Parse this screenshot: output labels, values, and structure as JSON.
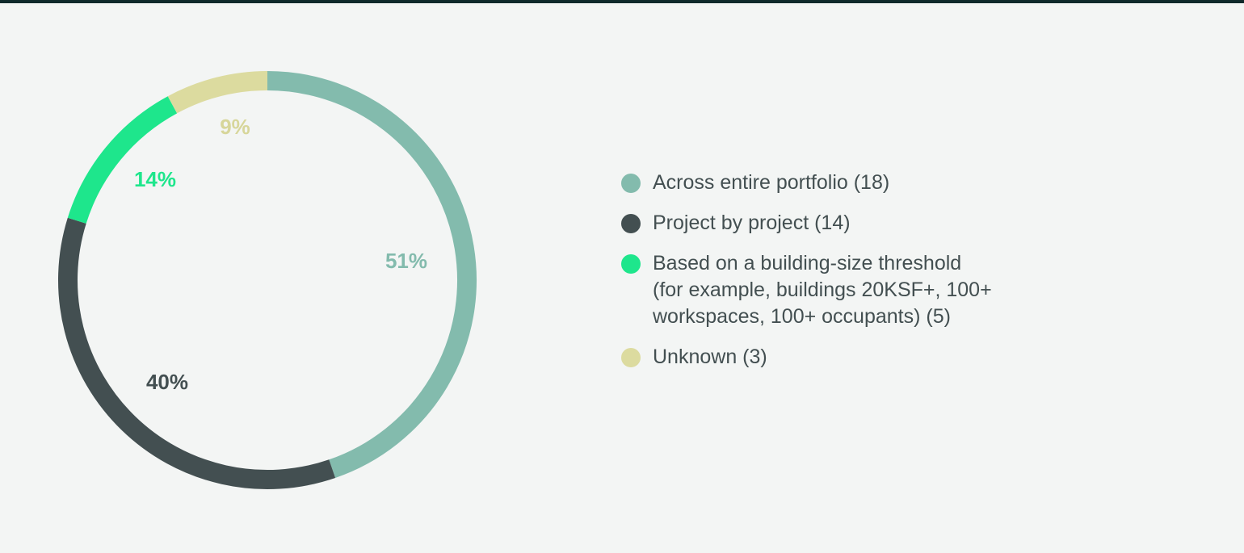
{
  "chart_data": {
    "type": "pie",
    "variant": "donut",
    "legend_position": "right",
    "slices": [
      {
        "label": "Across entire portfolio (18)",
        "value": 51,
        "value_label": "51%",
        "color": "#83bbad",
        "label_color": "#83bbad"
      },
      {
        "label": "Project by project (14)",
        "value": 40,
        "value_label": "40%",
        "color": "#434f51",
        "label_color": "#434f51"
      },
      {
        "label": "Based on a building-size threshold (for example, buildings 20KSF+, 100+ workspaces, 100+ occupants) (5)",
        "value": 14,
        "value_label": "14%",
        "color": "#1ee68c",
        "label_color": "#1ee68c"
      },
      {
        "label": "Unknown (3)",
        "value": 9,
        "value_label": "9%",
        "color": "#dcdb9f",
        "label_color": "#d7d69a"
      }
    ]
  },
  "legend": {
    "items": [
      {
        "lines": [
          "Across entire portfolio (18)"
        ]
      },
      {
        "lines": [
          "Project by project (14)"
        ]
      },
      {
        "lines": [
          "Based on a building-size threshold",
          "(for example, buildings 20KSF+, 100+",
          "workspaces, 100+ occupants) (5)"
        ]
      },
      {
        "lines": [
          "Unknown (3)"
        ]
      }
    ]
  },
  "colors": {
    "background": "#f3f5f4",
    "top_rule": "#0f2a2b",
    "legend_text": "#434f51"
  }
}
